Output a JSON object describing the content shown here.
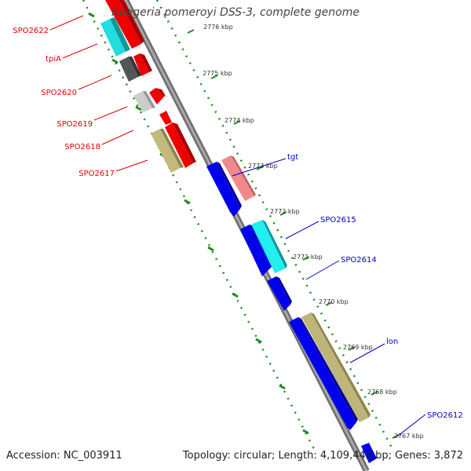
{
  "title": "Ruegeria pomeroyi DSS-3, complete genome",
  "footer": {
    "accession": "Accession: NC_003911",
    "topology": "Topology: circular; Length: 4,109,442 bp; Genes: 3,872"
  },
  "colors": {
    "backbone": "#8c8c8c",
    "scale_ticks": "#1f8a1f",
    "left_label": "#dd0000",
    "right_label": "#0000cc"
  },
  "scale_labels": [
    "2776 kbp",
    "2775 kbp",
    "2774 kbp",
    "2773 kbp",
    "2772 kbp",
    "2771 kbp",
    "2770 kbp",
    "2769 kbp",
    "2768 kbp",
    "2767 kbp"
  ],
  "left_labels": [
    "SPO2622",
    "tpiA",
    "SPO2620",
    "SPO2619",
    "SPO2618",
    "SPO2617"
  ],
  "right_labels": [
    "tgt",
    "SPO2615",
    "SPO2614",
    "lon",
    "SPO2612"
  ]
}
